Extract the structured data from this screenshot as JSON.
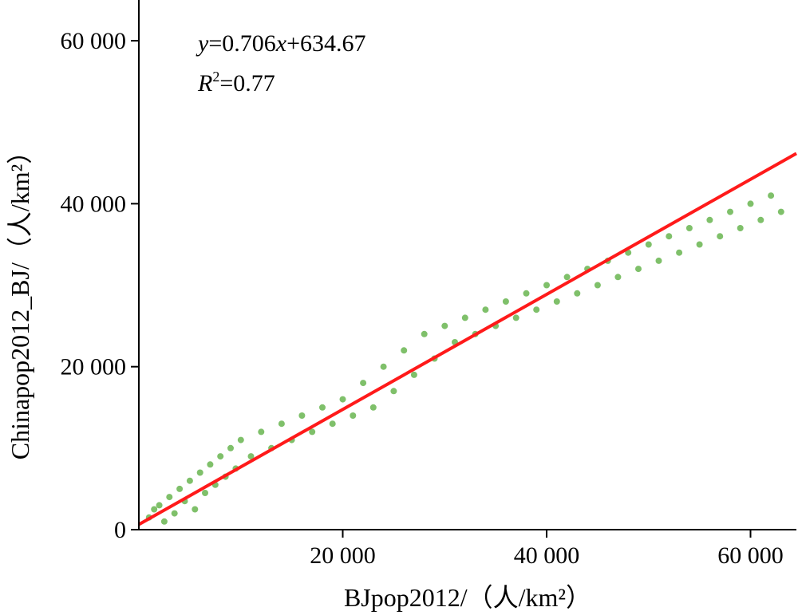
{
  "chart_data": {
    "type": "scatter",
    "xlabel": "BJpop2012/（人/km²）",
    "ylabel": "Chinapop2012_BJ/（人/km²）",
    "xlim": [
      0,
      64500
    ],
    "ylim": [
      0,
      65000
    ],
    "x_ticks": [
      20000,
      40000,
      60000
    ],
    "x_tick_labels": [
      "20 000",
      "40 000",
      "60 000"
    ],
    "y_ticks": [
      0,
      20000,
      40000,
      60000
    ],
    "y_tick_labels": [
      "0",
      "20 000",
      "40 000",
      "60 000"
    ],
    "equation": {
      "y": "y",
      "eq": "=0.706",
      "x": "x",
      "rest": "+634.67"
    },
    "r2": {
      "r": "R",
      "sup": "2",
      "rest": "=0.77"
    },
    "fit": {
      "slope": 0.706,
      "intercept": 634.67,
      "color": "#ff1a1a"
    },
    "point_color": "#3a9e1a",
    "grid": false,
    "points": [
      [
        1000,
        1500
      ],
      [
        1500,
        2500
      ],
      [
        2000,
        3000
      ],
      [
        2500,
        1000
      ],
      [
        3000,
        4000
      ],
      [
        3500,
        2000
      ],
      [
        4000,
        5000
      ],
      [
        4500,
        3500
      ],
      [
        5000,
        6000
      ],
      [
        5500,
        2500
      ],
      [
        6000,
        7000
      ],
      [
        6500,
        4500
      ],
      [
        7000,
        8000
      ],
      [
        7500,
        5500
      ],
      [
        8000,
        9000
      ],
      [
        8500,
        6500
      ],
      [
        9000,
        10000
      ],
      [
        9500,
        7500
      ],
      [
        10000,
        11000
      ],
      [
        11000,
        9000
      ],
      [
        12000,
        12000
      ],
      [
        13000,
        10000
      ],
      [
        14000,
        13000
      ],
      [
        15000,
        11000
      ],
      [
        16000,
        14000
      ],
      [
        17000,
        12000
      ],
      [
        18000,
        15000
      ],
      [
        19000,
        13000
      ],
      [
        20000,
        16000
      ],
      [
        21000,
        14000
      ],
      [
        22000,
        18000
      ],
      [
        23000,
        15000
      ],
      [
        24000,
        20000
      ],
      [
        25000,
        17000
      ],
      [
        26000,
        22000
      ],
      [
        27000,
        19000
      ],
      [
        28000,
        24000
      ],
      [
        29000,
        21000
      ],
      [
        30000,
        25000
      ],
      [
        31000,
        23000
      ],
      [
        32000,
        26000
      ],
      [
        33000,
        24000
      ],
      [
        34000,
        27000
      ],
      [
        35000,
        25000
      ],
      [
        36000,
        28000
      ],
      [
        37000,
        26000
      ],
      [
        38000,
        29000
      ],
      [
        39000,
        27000
      ],
      [
        40000,
        30000
      ],
      [
        41000,
        28000
      ],
      [
        42000,
        31000
      ],
      [
        43000,
        29000
      ],
      [
        44000,
        32000
      ],
      [
        45000,
        30000
      ],
      [
        46000,
        33000
      ],
      [
        47000,
        31000
      ],
      [
        48000,
        34000
      ],
      [
        49000,
        32000
      ],
      [
        50000,
        35000
      ],
      [
        51000,
        33000
      ],
      [
        52000,
        36000
      ],
      [
        53000,
        34000
      ],
      [
        54000,
        37000
      ],
      [
        55000,
        35000
      ],
      [
        56000,
        38000
      ],
      [
        57000,
        36000
      ],
      [
        58000,
        39000
      ],
      [
        59000,
        37000
      ],
      [
        60000,
        40000
      ],
      [
        61000,
        38000
      ],
      [
        62000,
        41000
      ],
      [
        63000,
        39000
      ]
    ]
  }
}
